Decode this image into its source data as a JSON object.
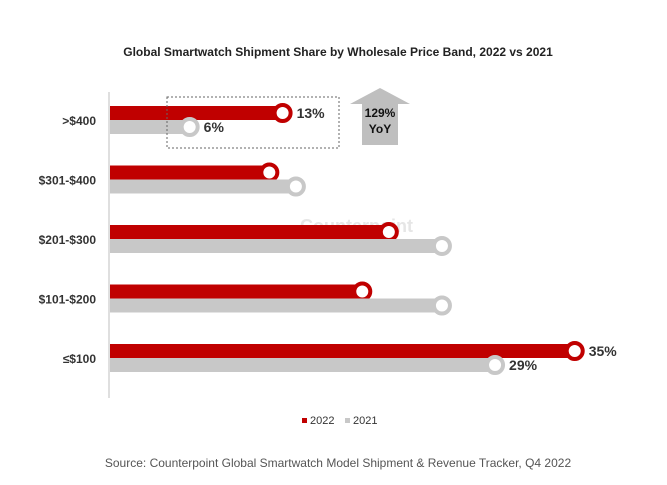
{
  "chart_data": {
    "type": "bar",
    "orientation": "horizontal",
    "title": "Global Smartwatch Shipment Share by Wholesale Price Band, 2022 vs 2021",
    "categories": [
      ">$400",
      "$301-$400",
      "$201-$300",
      "$101-$200",
      "≤$100"
    ],
    "series": [
      {
        "name": "2022",
        "color": "#c00000",
        "values": [
          13,
          12,
          21,
          19,
          35
        ]
      },
      {
        "name": "2021",
        "color": "#c8c8c8",
        "values": [
          6,
          14,
          25,
          25,
          29
        ]
      }
    ],
    "data_labels": {
      "2022": {
        ">$400": "13%",
        "≤$100": "35%"
      },
      "2021": {
        ">$400": "6%",
        "≤$100": "29%"
      }
    },
    "xlim": [
      0,
      36
    ],
    "grid": false,
    "legend": "bottom",
    "annotation": {
      "line1": "129%",
      "line2": "YoY"
    },
    "source": "Source: Counterpoint Global Smartwatch Model Shipment & Revenue Tracker, Q4 2022",
    "watermark": "Counterpoint"
  }
}
